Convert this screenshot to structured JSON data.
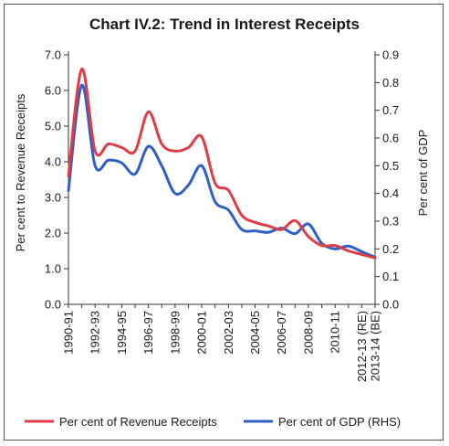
{
  "chart_data": {
    "type": "line",
    "title": "Chart IV.2: Trend in Interest Receipts",
    "categories": [
      "1990-91",
      "1991-92",
      "1992-93",
      "1993-94",
      "1994-95",
      "1995-96",
      "1996-97",
      "1997-98",
      "1998-99",
      "1999-00",
      "2000-01",
      "2001-02",
      "2002-03",
      "2003-04",
      "2004-05",
      "2005-06",
      "2006-07",
      "2007-08",
      "2008-09",
      "2009-10",
      "2010-11",
      "2011-12",
      "2012-13 (RE)",
      "2013-14 (BE)"
    ],
    "tick_labels": [
      "1990-91",
      "1992-93",
      "1994-95",
      "1996-97",
      "1998-99",
      "2000-01",
      "2002-03",
      "2004-05",
      "2006-07",
      "2008-09",
      "2010-11",
      "2012-13 (RE)",
      "2013-14 (BE)"
    ],
    "y_left": {
      "label": "Per cent to Revenue Receipts",
      "range": [
        0,
        7
      ],
      "ticks": [
        "0.0",
        "1.0",
        "2.0",
        "3.0",
        "4.0",
        "5.0",
        "6.0",
        "7.0"
      ]
    },
    "y_right": {
      "label": "Per cent of GDP",
      "range": [
        0,
        0.9
      ],
      "ticks": [
        "0.0",
        "0.1",
        "0.2",
        "0.3",
        "0.4",
        "0.5",
        "0.6",
        "0.7",
        "0.8",
        "0.9"
      ]
    },
    "series": [
      {
        "name": "Per cent of Revenue Receipts",
        "axis": "left",
        "color": "#e03c45",
        "values": [
          3.6,
          6.6,
          4.3,
          4.5,
          4.4,
          4.3,
          5.4,
          4.5,
          4.3,
          4.4,
          4.7,
          3.4,
          3.2,
          2.5,
          2.3,
          2.2,
          2.1,
          2.35,
          1.9,
          1.65,
          1.65,
          1.5,
          1.4,
          1.3
        ]
      },
      {
        "name": "Per cent of GDP (RHS)",
        "axis": "right",
        "color": "#2f5fc6",
        "values": [
          0.41,
          0.79,
          0.5,
          0.52,
          0.51,
          0.47,
          0.57,
          0.5,
          0.4,
          0.43,
          0.5,
          0.37,
          0.34,
          0.27,
          0.265,
          0.26,
          0.275,
          0.255,
          0.29,
          0.22,
          0.2,
          0.21,
          0.19,
          0.17
        ]
      }
    ],
    "legend": "bottom"
  }
}
